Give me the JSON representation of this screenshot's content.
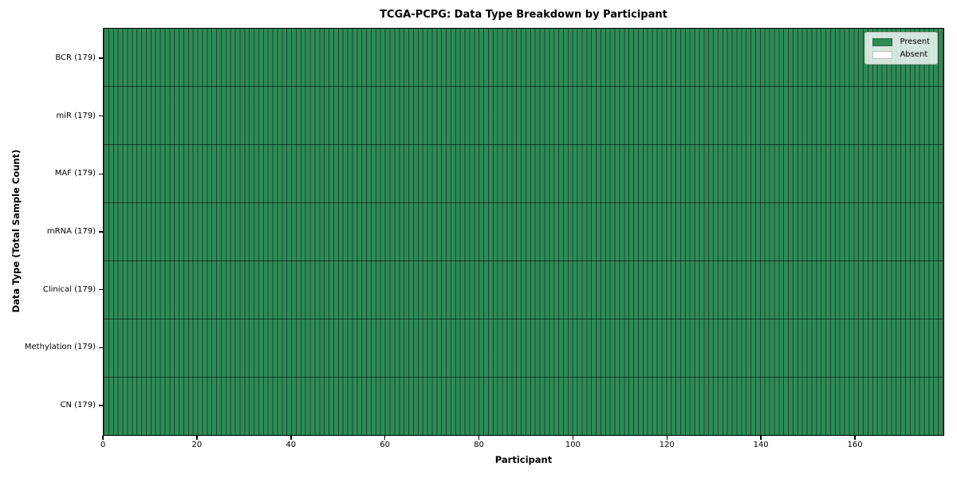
{
  "chart_data": {
    "type": "heatmap",
    "title": "TCGA-PCPG: Data Type Breakdown by Participant",
    "xlabel": "Participant",
    "ylabel": "Data Type (Total Sample Count)",
    "n_participants": 179,
    "xlim": [
      0,
      179
    ],
    "x_ticks": [
      0,
      20,
      40,
      60,
      80,
      100,
      120,
      140,
      160
    ],
    "rows": [
      {
        "label": "BCR (179)",
        "data_type": "BCR",
        "total_sample_count": 179,
        "present_count": 179,
        "absent_count": 0
      },
      {
        "label": "miR (179)",
        "data_type": "miR",
        "total_sample_count": 179,
        "present_count": 179,
        "absent_count": 0
      },
      {
        "label": "MAF (179)",
        "data_type": "MAF",
        "total_sample_count": 179,
        "present_count": 179,
        "absent_count": 0
      },
      {
        "label": "mRNA (179)",
        "data_type": "mRNA",
        "total_sample_count": 179,
        "present_count": 179,
        "absent_count": 0
      },
      {
        "label": "Clinical (179)",
        "data_type": "Clinical",
        "total_sample_count": 179,
        "present_count": 179,
        "absent_count": 0
      },
      {
        "label": "Methylation (179)",
        "data_type": "Methylation",
        "total_sample_count": 179,
        "present_count": 179,
        "absent_count": 0
      },
      {
        "label": "CN (179)",
        "data_type": "CN",
        "total_sample_count": 179,
        "present_count": 179,
        "absent_count": 0
      }
    ],
    "all_cells_state": "Present",
    "colors": {
      "present": "#2E8B57",
      "absent": "#FFFFFF",
      "cell_border": "rgba(0,0,0,0.48)"
    },
    "legend": {
      "position": "upper right",
      "items": [
        {
          "label": "Present",
          "color": "#2E8B57"
        },
        {
          "label": "Absent",
          "color": "#FFFFFF"
        }
      ]
    },
    "grid": "cell-borders",
    "legend_position": "upper right"
  }
}
